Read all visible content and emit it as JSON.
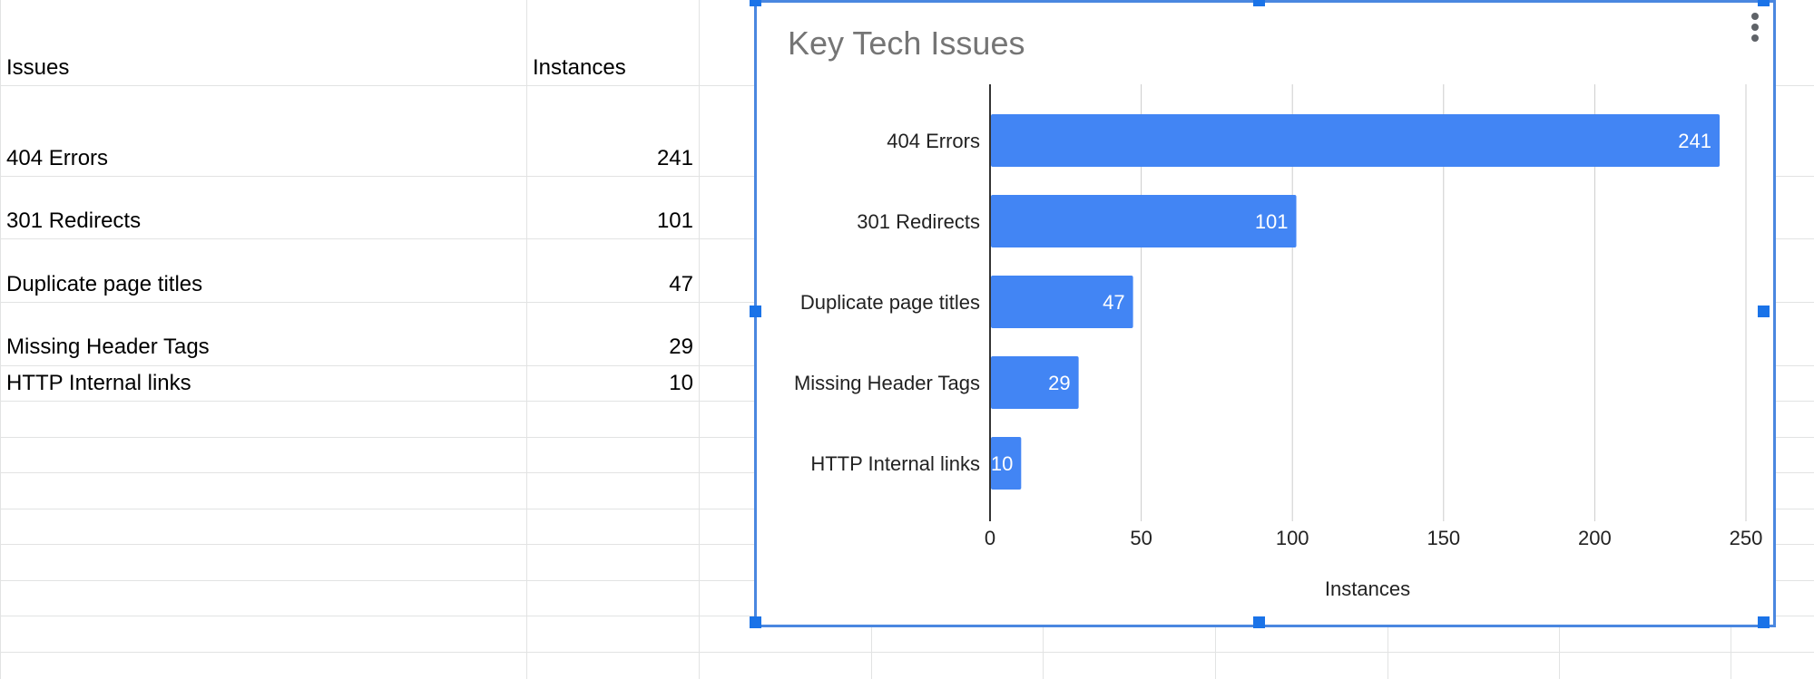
{
  "sheet": {
    "headers": {
      "issues": "Issues",
      "instances": "Instances"
    },
    "rows": [
      {
        "issue": "404 Errors",
        "count": "241"
      },
      {
        "issue": "301 Redirects",
        "count": "101"
      },
      {
        "issue": "Duplicate page titles",
        "count": "47"
      },
      {
        "issue": "Missing Header Tags",
        "count": "29"
      },
      {
        "issue": "HTTP Internal links",
        "count": "10"
      }
    ]
  },
  "chart": {
    "menu_icon": "more-vertical-icon",
    "bar_color": "#4285f4",
    "selection_color": "#1a73e8"
  },
  "chart_data": {
    "type": "bar",
    "orientation": "horizontal",
    "title": "Key Tech Issues",
    "xlabel": "Instances",
    "ylabel": "",
    "categories": [
      "404 Errors",
      "301 Redirects",
      "Duplicate page titles",
      "Missing Header Tags",
      "HTTP Internal links"
    ],
    "values": [
      241,
      101,
      47,
      29,
      10
    ],
    "xlim": [
      0,
      250
    ],
    "xticks": [
      0,
      50,
      100,
      150,
      200,
      250
    ],
    "grid": true,
    "legend": "none"
  }
}
